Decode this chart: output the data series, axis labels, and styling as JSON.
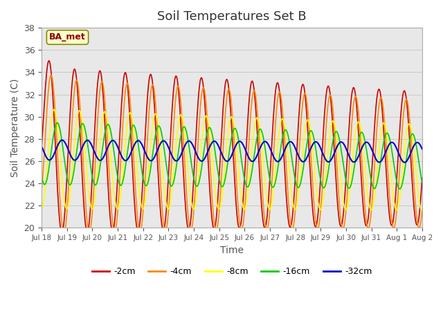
{
  "title": "Soil Temperatures Set B",
  "xlabel": "Time",
  "ylabel": "Soil Temperature (C)",
  "ylim": [
    20,
    38
  ],
  "annotation": "BA_met",
  "xtick_labels": [
    "Jul 18",
    "Jul 19",
    "Jul 20",
    "Jul 21",
    "Jul 22",
    "Jul 23",
    "Jul 24",
    "Jul 25",
    "Jul 26",
    "Jul 27",
    "Jul 28",
    "Jul 29",
    "Jul 30",
    "Jul 31",
    "Aug 1",
    "Aug 2"
  ],
  "colors": {
    "-2cm": "#cc0000",
    "-4cm": "#ff8800",
    "-8cm": "#ffff00",
    "-16cm": "#00cc00",
    "-32cm": "#0000cc"
  },
  "background_color": "#e8e8e8",
  "title_fontsize": 13,
  "label_fontsize": 10
}
